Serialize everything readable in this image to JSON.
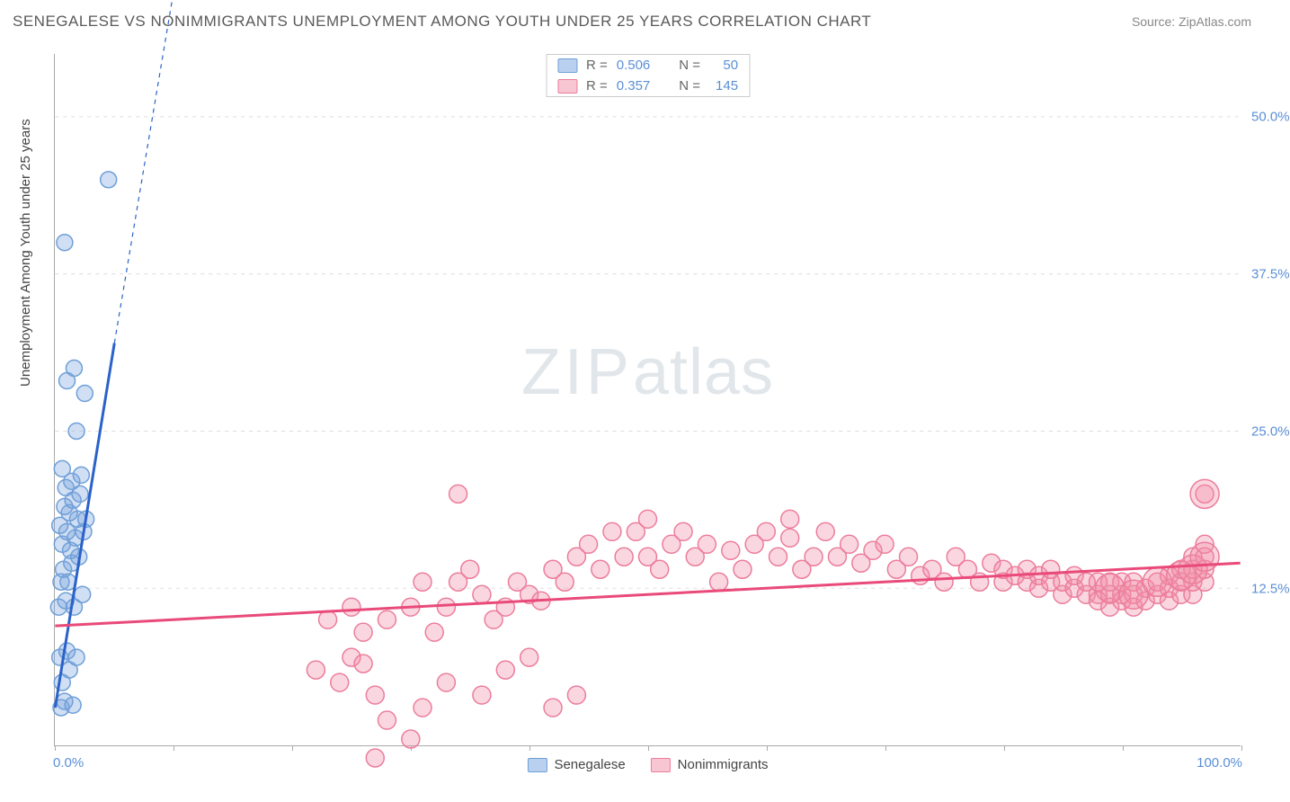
{
  "title": "SENEGALESE VS NONIMMIGRANTS UNEMPLOYMENT AMONG YOUTH UNDER 25 YEARS CORRELATION CHART",
  "source_label": "Source:",
  "source_value": "ZipAtlas.com",
  "y_axis_title": "Unemployment Among Youth under 25 years",
  "watermark_a": "ZIP",
  "watermark_b": "atlas",
  "chart": {
    "type": "scatter",
    "xlim": [
      0,
      100
    ],
    "ylim": [
      0,
      55
    ],
    "x_ticks": [
      0,
      10,
      20,
      30,
      40,
      50,
      60,
      70,
      80,
      90,
      100
    ],
    "x_tick_labels_show": [
      0,
      100
    ],
    "x_tick_label_min": "0.0%",
    "x_tick_label_max": "100.0%",
    "y_grid": [
      12.5,
      25.0,
      37.5,
      50.0
    ],
    "y_grid_labels": [
      "12.5%",
      "25.0%",
      "37.5%",
      "50.0%"
    ],
    "grid_color": "#dddddd",
    "background_color": "#ffffff",
    "series": [
      {
        "name": "Senegalese",
        "label": "Senegalese",
        "color_fill": "rgba(120,164,220,0.35)",
        "color_stroke": "#6f9fd8",
        "swatch_fill": "#b9d1ee",
        "swatch_stroke": "#6f9fd8",
        "marker_r": 9,
        "stats": {
          "R": "0.506",
          "N": "50"
        },
        "trend": {
          "x1": 0,
          "y1": 3,
          "x2": 5,
          "y2": 32,
          "stroke": "#2b62c9",
          "width": 3
        },
        "trend_ext": {
          "x1": 5,
          "y1": 32,
          "x2": 10,
          "y2": 60,
          "stroke": "#2b62c9",
          "width": 1.2,
          "dash": "5,5"
        },
        "points": [
          [
            0.5,
            3
          ],
          [
            0.8,
            3.5
          ],
          [
            1.5,
            3.2
          ],
          [
            0.6,
            5
          ],
          [
            1.2,
            6
          ],
          [
            0.4,
            7
          ],
          [
            1.0,
            7.5
          ],
          [
            1.8,
            7
          ],
          [
            0.3,
            11
          ],
          [
            0.9,
            11.5
          ],
          [
            1.6,
            11
          ],
          [
            2.3,
            12
          ],
          [
            1.1,
            13
          ],
          [
            0.5,
            13
          ],
          [
            0.7,
            14
          ],
          [
            1.4,
            14.5
          ],
          [
            2.0,
            15
          ],
          [
            1.3,
            15.5
          ],
          [
            0.6,
            16
          ],
          [
            1.7,
            16.5
          ],
          [
            2.4,
            17
          ],
          [
            1.0,
            17
          ],
          [
            0.4,
            17.5
          ],
          [
            1.9,
            18
          ],
          [
            2.6,
            18
          ],
          [
            1.2,
            18.5
          ],
          [
            0.8,
            19
          ],
          [
            1.5,
            19.5
          ],
          [
            2.1,
            20
          ],
          [
            0.9,
            20.5
          ],
          [
            1.4,
            21
          ],
          [
            2.2,
            21.5
          ],
          [
            0.6,
            22
          ],
          [
            1.8,
            25
          ],
          [
            2.5,
            28
          ],
          [
            1.0,
            29
          ],
          [
            1.6,
            30
          ],
          [
            0.8,
            40
          ],
          [
            4.5,
            45
          ]
        ]
      },
      {
        "name": "Nonimmigrants",
        "label": "Nonimmigrants",
        "color_fill": "rgba(240,140,165,0.35)",
        "color_stroke": "#ec7d9b",
        "swatch_fill": "#f8c6d3",
        "swatch_stroke": "#ec7d9b",
        "marker_r": 10,
        "stats": {
          "R": "0.357",
          "N": "145"
        },
        "trend": {
          "x1": 0,
          "y1": 9.5,
          "x2": 100,
          "y2": 14.5,
          "stroke": "#e94a7a",
          "width": 3
        },
        "points": [
          [
            22,
            6
          ],
          [
            24,
            5
          ],
          [
            25,
            7
          ],
          [
            26,
            6.5
          ],
          [
            27,
            4
          ],
          [
            28,
            2
          ],
          [
            27,
            -1
          ],
          [
            30,
            0.5
          ],
          [
            23,
            10
          ],
          [
            25,
            11
          ],
          [
            26,
            9
          ],
          [
            28,
            10
          ],
          [
            30,
            11
          ],
          [
            31,
            13
          ],
          [
            32,
            9
          ],
          [
            33,
            11
          ],
          [
            34,
            13
          ],
          [
            35,
            14
          ],
          [
            34,
            20
          ],
          [
            36,
            12
          ],
          [
            37,
            10
          ],
          [
            38,
            11
          ],
          [
            39,
            13
          ],
          [
            40,
            12
          ],
          [
            41,
            11.5
          ],
          [
            42,
            14
          ],
          [
            43,
            13
          ],
          [
            44,
            15
          ],
          [
            45,
            16
          ],
          [
            46,
            14
          ],
          [
            47,
            17
          ],
          [
            48,
            15
          ],
          [
            49,
            17
          ],
          [
            31,
            3
          ],
          [
            33,
            5
          ],
          [
            36,
            4
          ],
          [
            38,
            6
          ],
          [
            40,
            7
          ],
          [
            42,
            3
          ],
          [
            44,
            4
          ],
          [
            50,
            15
          ],
          [
            50,
            18
          ],
          [
            51,
            14
          ],
          [
            52,
            16
          ],
          [
            53,
            17
          ],
          [
            54,
            15
          ],
          [
            55,
            16
          ],
          [
            56,
            13
          ],
          [
            57,
            15.5
          ],
          [
            58,
            14
          ],
          [
            59,
            16
          ],
          [
            60,
            17
          ],
          [
            61,
            15
          ],
          [
            62,
            16.5
          ],
          [
            63,
            14
          ],
          [
            64,
            15
          ],
          [
            65,
            17
          ],
          [
            62,
            18
          ],
          [
            66,
            15
          ],
          [
            67,
            16
          ],
          [
            68,
            14.5
          ],
          [
            69,
            15.5
          ],
          [
            70,
            16
          ],
          [
            71,
            14
          ],
          [
            72,
            15
          ],
          [
            73,
            13.5
          ],
          [
            74,
            14
          ],
          [
            75,
            13
          ],
          [
            76,
            15
          ],
          [
            77,
            14
          ],
          [
            78,
            13
          ],
          [
            79,
            14.5
          ],
          [
            80,
            13
          ],
          [
            80,
            14
          ],
          [
            81,
            13.5
          ],
          [
            82,
            13
          ],
          [
            82,
            14
          ],
          [
            83,
            12.5
          ],
          [
            83,
            13.5
          ],
          [
            84,
            13
          ],
          [
            84,
            14
          ],
          [
            85,
            12
          ],
          [
            85,
            13
          ],
          [
            86,
            12.5
          ],
          [
            86,
            13.5
          ],
          [
            87,
            12
          ],
          [
            87,
            13
          ],
          [
            88,
            12
          ],
          [
            88,
            13
          ],
          [
            88,
            11.5
          ],
          [
            89,
            12
          ],
          [
            89,
            13
          ],
          [
            89,
            11
          ],
          [
            90,
            12
          ],
          [
            90,
            11.5
          ],
          [
            90,
            13
          ],
          [
            91,
            11
          ],
          [
            91,
            12
          ],
          [
            91,
            13
          ],
          [
            92,
            11.5
          ],
          [
            92,
            12.5
          ],
          [
            93,
            12
          ],
          [
            93,
            13
          ],
          [
            94,
            11.5
          ],
          [
            94,
            12.5
          ],
          [
            94,
            13.5
          ],
          [
            95,
            12
          ],
          [
            95,
            13
          ],
          [
            95,
            14
          ],
          [
            96,
            12
          ],
          [
            96,
            13
          ],
          [
            96,
            14
          ],
          [
            96,
            15
          ],
          [
            97,
            13
          ],
          [
            97,
            14
          ],
          [
            97,
            15
          ],
          [
            97,
            16
          ],
          [
            97,
            20
          ]
        ],
        "points_large": [
          [
            89,
            12.5
          ],
          [
            91,
            12
          ],
          [
            93,
            13
          ],
          [
            95,
            13.5
          ],
          [
            96,
            14
          ],
          [
            97,
            15
          ],
          [
            97,
            20
          ]
        ]
      }
    ]
  },
  "legend_top": {
    "r_label": "R =",
    "n_label": "N ="
  },
  "legend_bottom_labels": [
    "Senegalese",
    "Nonimmigrants"
  ]
}
